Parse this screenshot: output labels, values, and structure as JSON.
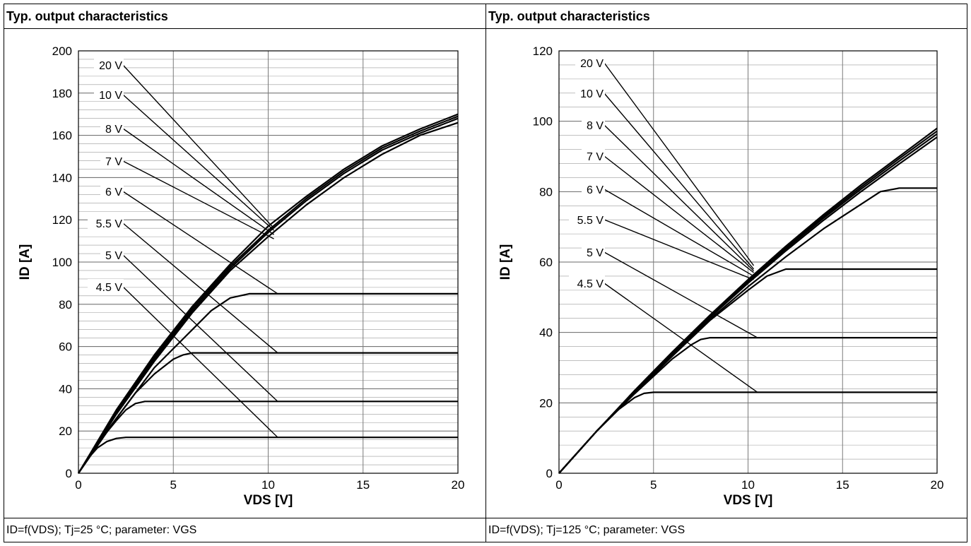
{
  "chart_data": [
    {
      "type": "line",
      "title": "Typ. output characteristics",
      "xlabel": "VDS [V]",
      "ylabel": "ID [A]",
      "xlim": [
        0,
        20
      ],
      "ylim": [
        0,
        200
      ],
      "xticks": [
        0,
        5,
        10,
        15,
        20
      ],
      "yticks": [
        0,
        20,
        40,
        60,
        80,
        100,
        120,
        140,
        160,
        180,
        200
      ],
      "grid": true,
      "caption": "ID=f(VDS); Tj=25 °C; parameter: VGS",
      "series": [
        {
          "name": "20 V",
          "x": [
            0,
            2,
            4,
            6,
            8,
            10,
            12,
            14,
            16,
            18,
            20
          ],
          "values": [
            0,
            30,
            56,
            79,
            99,
            117,
            131,
            144,
            155,
            163,
            170
          ]
        },
        {
          "name": "10 V",
          "x": [
            0,
            2,
            4,
            6,
            8,
            10,
            12,
            14,
            16,
            18,
            20
          ],
          "values": [
            0,
            29,
            55,
            78,
            98,
            115,
            130,
            143,
            154,
            162,
            169
          ]
        },
        {
          "name": "8 V",
          "x": [
            0,
            2,
            4,
            6,
            8,
            10,
            12,
            14,
            16,
            18,
            20
          ],
          "values": [
            0,
            29,
            54,
            77,
            97,
            114,
            129,
            142,
            153,
            161,
            168
          ]
        },
        {
          "name": "7 V",
          "x": [
            0,
            2,
            4,
            6,
            8,
            10,
            12,
            14,
            16,
            18,
            20
          ],
          "values": [
            0,
            28,
            53,
            76,
            96,
            112,
            127,
            140,
            151,
            160,
            166
          ]
        },
        {
          "name": "6 V",
          "x": [
            0,
            2,
            4,
            6,
            7,
            8,
            9,
            10.5,
            15,
            20
          ],
          "values": [
            0,
            26,
            50,
            68,
            77,
            83,
            85,
            85,
            85,
            85
          ]
        },
        {
          "name": "5.5 V",
          "x": [
            0,
            1,
            2,
            3,
            4,
            5,
            5.5,
            6,
            10,
            20
          ],
          "values": [
            0,
            14,
            26,
            38,
            47,
            54,
            56,
            57,
            57,
            57
          ]
        },
        {
          "name": "5 V",
          "x": [
            0,
            1,
            2,
            2.5,
            3,
            3.5,
            10,
            20
          ],
          "values": [
            0,
            14,
            25,
            30,
            33,
            34,
            34,
            34
          ]
        },
        {
          "name": "4.5 V",
          "x": [
            0,
            0.5,
            1,
            1.5,
            2,
            2.5,
            10,
            20
          ],
          "values": [
            0,
            7,
            12,
            15,
            16.5,
            17,
            17,
            17
          ]
        }
      ]
    },
    {
      "type": "line",
      "title": "Typ. output characteristics",
      "xlabel": "VDS [V]",
      "ylabel": "ID [A]",
      "xlim": [
        0,
        20
      ],
      "ylim": [
        0,
        120
      ],
      "xticks": [
        0,
        5,
        10,
        15,
        20
      ],
      "yticks": [
        0,
        20,
        40,
        60,
        80,
        100,
        120
      ],
      "grid": true,
      "caption": "ID=f(VDS); Tj=125 °C; parameter: VGS",
      "series": [
        {
          "name": "20 V",
          "x": [
            0,
            2,
            4,
            6,
            8,
            10,
            12,
            14,
            16,
            18,
            20
          ],
          "values": [
            0,
            12,
            23.5,
            34.5,
            45,
            55,
            64.5,
            73.5,
            82,
            90,
            98
          ]
        },
        {
          "name": "10 V",
          "x": [
            0,
            2,
            4,
            6,
            8,
            10,
            12,
            14,
            16,
            18,
            20
          ],
          "values": [
            0,
            12,
            23.3,
            34.3,
            44.8,
            54.7,
            64.1,
            73,
            81.4,
            89.4,
            97.2
          ]
        },
        {
          "name": "8 V",
          "x": [
            0,
            2,
            4,
            6,
            8,
            10,
            12,
            14,
            16,
            18,
            20
          ],
          "values": [
            0,
            12,
            23.1,
            34.1,
            44.6,
            54.4,
            63.7,
            72.5,
            80.8,
            88.7,
            96.4
          ]
        },
        {
          "name": "7 V",
          "x": [
            0,
            2,
            4,
            6,
            8,
            10,
            12,
            14,
            16,
            18,
            20
          ],
          "values": [
            0,
            12,
            23,
            33.9,
            44.3,
            54,
            63.2,
            71.9,
            80.1,
            87.9,
            95.5
          ]
        },
        {
          "name": "6 V",
          "x": [
            0,
            2,
            4,
            6,
            8,
            10,
            12,
            14,
            16,
            17,
            18,
            20
          ],
          "values": [
            0,
            12,
            22.8,
            33.5,
            43.8,
            53,
            61.5,
            69.5,
            76.5,
            80,
            81,
            81
          ]
        },
        {
          "name": "5.5 V",
          "x": [
            0,
            2,
            4,
            6,
            8,
            10,
            11,
            12,
            15,
            20
          ],
          "values": [
            0,
            12,
            22.7,
            33.3,
            43.5,
            52,
            56,
            58,
            58,
            58
          ]
        },
        {
          "name": "5 V",
          "x": [
            0,
            2,
            4,
            6,
            7,
            7.5,
            8,
            10,
            20
          ],
          "values": [
            0,
            12,
            22.6,
            32.5,
            36.5,
            38,
            38.5,
            38.5,
            38.5
          ]
        },
        {
          "name": "4.5 V",
          "x": [
            0,
            1,
            2,
            3,
            4,
            4.5,
            5,
            10,
            20
          ],
          "values": [
            0,
            6,
            12,
            17.5,
            21.5,
            22.7,
            23,
            23,
            23
          ]
        }
      ]
    }
  ]
}
